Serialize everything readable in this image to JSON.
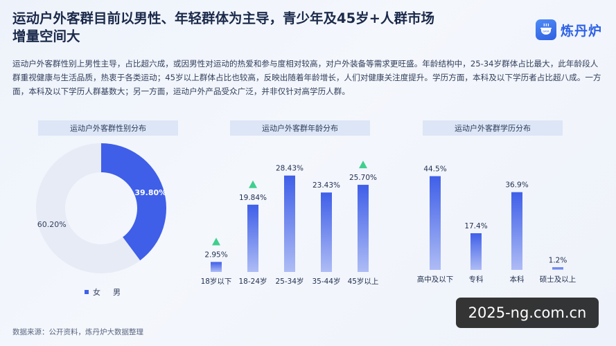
{
  "title_line1": "运动户外客群目前以男性、年轻群体为主导，青少年及45岁+人群市场",
  "title_line2": "增量空间大",
  "logo": {
    "text": "炼丹炉",
    "mark_text": "DATA"
  },
  "description": "运动户外客群性别上男性主导，占比超六成，或因男性对运动的热爱和参与度相对较高，对户外装备等需求更旺盛。年龄结构中，25-34岁群体占比最大，此年龄段人群重视健康与生活品质，热衷于各类运动；45岁以上群体占比也较高，反映出随着年龄增长，人们对健康关注度提升。学历方面，本科及以下学历者占比超八成。一方面，本科及以下学历人群基数大；另一方面，运动户外产品受众广泛，并非仅针对高学历人群。",
  "source": "数据来源：公开资料，炼丹炉大数据整理",
  "watermark": "2025-ng.com.cn",
  "colors": {
    "accent": "#3f5fe8",
    "muted": "#e6ebf6",
    "triangle": "#3fcf8e"
  },
  "chart_data": [
    {
      "type": "pie",
      "title": "运动户外客群性别分布",
      "donut": true,
      "slices": [
        {
          "name": "女",
          "value": 39.8,
          "label": "39.80%"
        },
        {
          "name": "男",
          "value": 60.2,
          "label": "60.20%"
        }
      ],
      "legend": [
        "女",
        "男"
      ],
      "legend_placement": "bottom-left"
    },
    {
      "type": "bar",
      "title": "运动户外客群年龄分布",
      "categories": [
        "18岁以下",
        "18-24岁",
        "25-34岁",
        "35-44岁",
        "45岁以上"
      ],
      "values": [
        2.95,
        19.84,
        28.43,
        23.43,
        25.7
      ],
      "labels": [
        "2.95%",
        "19.84%",
        "28.43%",
        "23.43%",
        "25.70%"
      ],
      "highlighted": [
        "18岁以下",
        "18-24岁",
        "45岁以上"
      ],
      "ylim": [
        0,
        30
      ]
    },
    {
      "type": "bar",
      "title": "运动户外客群学历分布",
      "categories": [
        "高中及以下",
        "专科",
        "本科",
        "硕士及以上"
      ],
      "values": [
        44.5,
        17.4,
        36.9,
        1.2
      ],
      "labels": [
        "44.5%",
        "17.4%",
        "36.9%",
        "1.2%"
      ],
      "ylim": [
        0,
        46
      ]
    }
  ]
}
